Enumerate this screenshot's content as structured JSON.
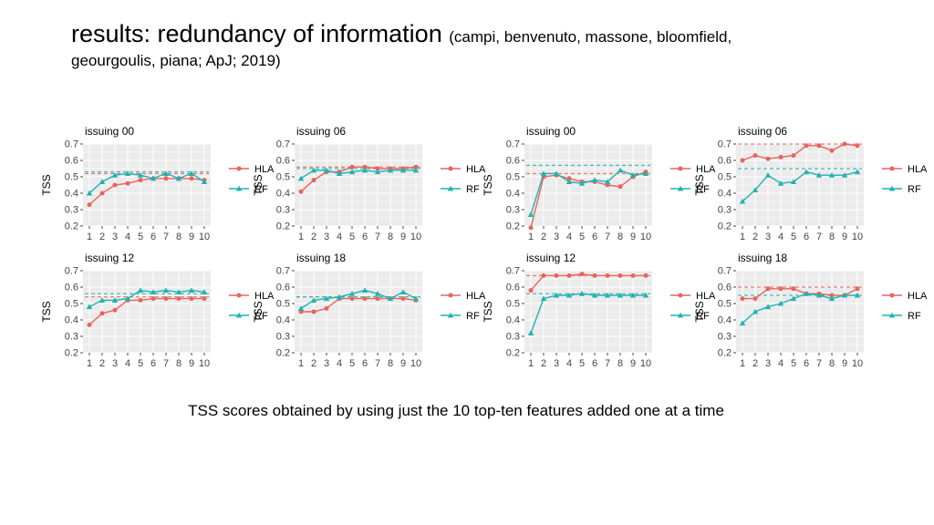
{
  "title": {
    "main": "results: redundancy of information",
    "sub": "(campi, benvenuto, massone, bloomfield,",
    "line2": "geourgoulis, piana; ApJ; 2019)"
  },
  "caption": "TSS scores obtained by using just the 10 top-ten features added one at a time",
  "colors": {
    "HLA": "#e8645e",
    "RF": "#1fb3b0",
    "panel_bg": "#ebebeb",
    "grid": "#ffffff"
  },
  "chart_data": [
    {
      "type": "line",
      "title": "issuing 00",
      "ylabel": "TSS",
      "categories": [
        "1",
        "2",
        "3",
        "4",
        "5",
        "6",
        "7",
        "8",
        "9",
        "10"
      ],
      "ylim": [
        0.2,
        0.7
      ],
      "yticks": [
        "0.7",
        "0.6",
        "0.5",
        "0.4",
        "0.3",
        "0.2"
      ],
      "legend": "right",
      "series": [
        {
          "name": "HLA",
          "marker": "circle",
          "values": [
            0.33,
            0.4,
            0.45,
            0.46,
            0.48,
            0.49,
            0.49,
            0.49,
            0.49,
            0.48
          ],
          "reference": 0.52
        },
        {
          "name": "RF",
          "marker": "triangle",
          "values": [
            0.4,
            0.47,
            0.51,
            0.52,
            0.51,
            0.49,
            0.52,
            0.49,
            0.52,
            0.47
          ],
          "reference": 0.53
        }
      ]
    },
    {
      "type": "line",
      "title": "issuing 06",
      "ylabel": "TSS",
      "categories": [
        "1",
        "2",
        "3",
        "4",
        "5",
        "6",
        "7",
        "8",
        "9",
        "10"
      ],
      "ylim": [
        0.2,
        0.7
      ],
      "yticks": [
        "0.7",
        "0.6",
        "0.5",
        "0.4",
        "0.3",
        "0.2"
      ],
      "legend": "right",
      "series": [
        {
          "name": "HLA",
          "marker": "circle",
          "values": [
            0.41,
            0.48,
            0.53,
            0.53,
            0.56,
            0.56,
            0.55,
            0.55,
            0.55,
            0.56
          ],
          "reference": 0.56
        },
        {
          "name": "RF",
          "marker": "triangle",
          "values": [
            0.49,
            0.54,
            0.54,
            0.52,
            0.53,
            0.54,
            0.53,
            0.54,
            0.54,
            0.54
          ],
          "reference": 0.55
        }
      ]
    },
    {
      "type": "line",
      "title": "issuing 00",
      "ylabel": "TSS",
      "categories": [
        "1",
        "2",
        "3",
        "4",
        "5",
        "6",
        "7",
        "8",
        "9",
        "10"
      ],
      "ylim": [
        0.2,
        0.7
      ],
      "yticks": [
        "0.7",
        "0.6",
        "0.5",
        "0.4",
        "0.3",
        "0.2"
      ],
      "legend": "right",
      "series": [
        {
          "name": "HLA",
          "marker": "circle",
          "values": [
            0.19,
            0.5,
            0.51,
            0.49,
            0.47,
            0.47,
            0.45,
            0.44,
            0.5,
            0.53
          ],
          "reference": 0.52
        },
        {
          "name": "RF",
          "marker": "triangle",
          "values": [
            0.27,
            0.52,
            0.52,
            0.47,
            0.46,
            0.48,
            0.47,
            0.54,
            0.51,
            0.52
          ],
          "reference": 0.57
        }
      ]
    },
    {
      "type": "line",
      "title": "issuing 06",
      "ylabel": "TSS",
      "categories": [
        "1",
        "2",
        "3",
        "4",
        "5",
        "6",
        "7",
        "8",
        "9",
        "10"
      ],
      "ylim": [
        0.2,
        0.7
      ],
      "yticks": [
        "0.7",
        "0.6",
        "0.5",
        "0.4",
        "0.3",
        "0.2"
      ],
      "legend": "right",
      "series": [
        {
          "name": "HLA",
          "marker": "circle",
          "values": [
            0.6,
            0.63,
            0.61,
            0.62,
            0.63,
            0.69,
            0.69,
            0.66,
            0.7,
            0.69
          ],
          "reference": 0.7
        },
        {
          "name": "RF",
          "marker": "triangle",
          "values": [
            0.35,
            0.42,
            0.51,
            0.46,
            0.47,
            0.53,
            0.51,
            0.51,
            0.51,
            0.53
          ],
          "reference": 0.55
        }
      ]
    },
    {
      "type": "line",
      "title": "issuing 12",
      "ylabel": "TSS",
      "categories": [
        "1",
        "2",
        "3",
        "4",
        "5",
        "6",
        "7",
        "8",
        "9",
        "10"
      ],
      "ylim": [
        0.2,
        0.7
      ],
      "yticks": [
        "0.7",
        "0.6",
        "0.5",
        "0.4",
        "0.3",
        "0.2"
      ],
      "legend": "right",
      "series": [
        {
          "name": "HLA",
          "marker": "circle",
          "values": [
            0.37,
            0.44,
            0.46,
            0.52,
            0.52,
            0.53,
            0.53,
            0.53,
            0.53,
            0.53
          ],
          "reference": 0.54
        },
        {
          "name": "RF",
          "marker": "triangle",
          "values": [
            0.48,
            0.52,
            0.52,
            0.53,
            0.58,
            0.57,
            0.58,
            0.57,
            0.58,
            0.57
          ],
          "reference": 0.56
        }
      ]
    },
    {
      "type": "line",
      "title": "issuing 18",
      "ylabel": "TSS",
      "categories": [
        "1",
        "2",
        "3",
        "4",
        "5",
        "6",
        "7",
        "8",
        "9",
        "10"
      ],
      "ylim": [
        0.2,
        0.7
      ],
      "yticks": [
        "0.7",
        "0.6",
        "0.5",
        "0.4",
        "0.3",
        "0.2"
      ],
      "legend": "right",
      "series": [
        {
          "name": "HLA",
          "marker": "circle",
          "values": [
            0.45,
            0.45,
            0.47,
            0.53,
            0.53,
            0.53,
            0.53,
            0.53,
            0.53,
            0.52
          ],
          "reference": 0.54
        },
        {
          "name": "RF",
          "marker": "triangle",
          "values": [
            0.47,
            0.52,
            0.53,
            0.54,
            0.56,
            0.58,
            0.56,
            0.53,
            0.57,
            0.53
          ],
          "reference": 0.54
        }
      ]
    },
    {
      "type": "line",
      "title": "issuing 12",
      "ylabel": "TSS",
      "categories": [
        "1",
        "2",
        "3",
        "4",
        "5",
        "6",
        "7",
        "8",
        "9",
        "10"
      ],
      "ylim": [
        0.2,
        0.7
      ],
      "yticks": [
        "0.7",
        "0.6",
        "0.5",
        "0.4",
        "0.3",
        "0.2"
      ],
      "legend": "right",
      "series": [
        {
          "name": "HLA",
          "marker": "circle",
          "values": [
            0.58,
            0.67,
            0.67,
            0.67,
            0.68,
            0.67,
            0.67,
            0.67,
            0.67,
            0.67
          ],
          "reference": 0.67
        },
        {
          "name": "RF",
          "marker": "triangle",
          "values": [
            0.32,
            0.53,
            0.55,
            0.55,
            0.56,
            0.55,
            0.55,
            0.55,
            0.55,
            0.55
          ],
          "reference": 0.56
        }
      ]
    },
    {
      "type": "line",
      "title": "issuing 18",
      "ylabel": "TSS",
      "categories": [
        "1",
        "2",
        "3",
        "4",
        "5",
        "6",
        "7",
        "8",
        "9",
        "10"
      ],
      "ylim": [
        0.2,
        0.7
      ],
      "yticks": [
        "0.7",
        "0.6",
        "0.5",
        "0.4",
        "0.3",
        "0.2"
      ],
      "legend": "right",
      "series": [
        {
          "name": "HLA",
          "marker": "circle",
          "values": [
            0.53,
            0.53,
            0.59,
            0.59,
            0.59,
            0.56,
            0.56,
            0.55,
            0.55,
            0.59
          ],
          "reference": 0.6
        },
        {
          "name": "RF",
          "marker": "triangle",
          "values": [
            0.38,
            0.45,
            0.48,
            0.5,
            0.53,
            0.56,
            0.55,
            0.53,
            0.55,
            0.55
          ],
          "reference": 0.55
        }
      ]
    }
  ]
}
